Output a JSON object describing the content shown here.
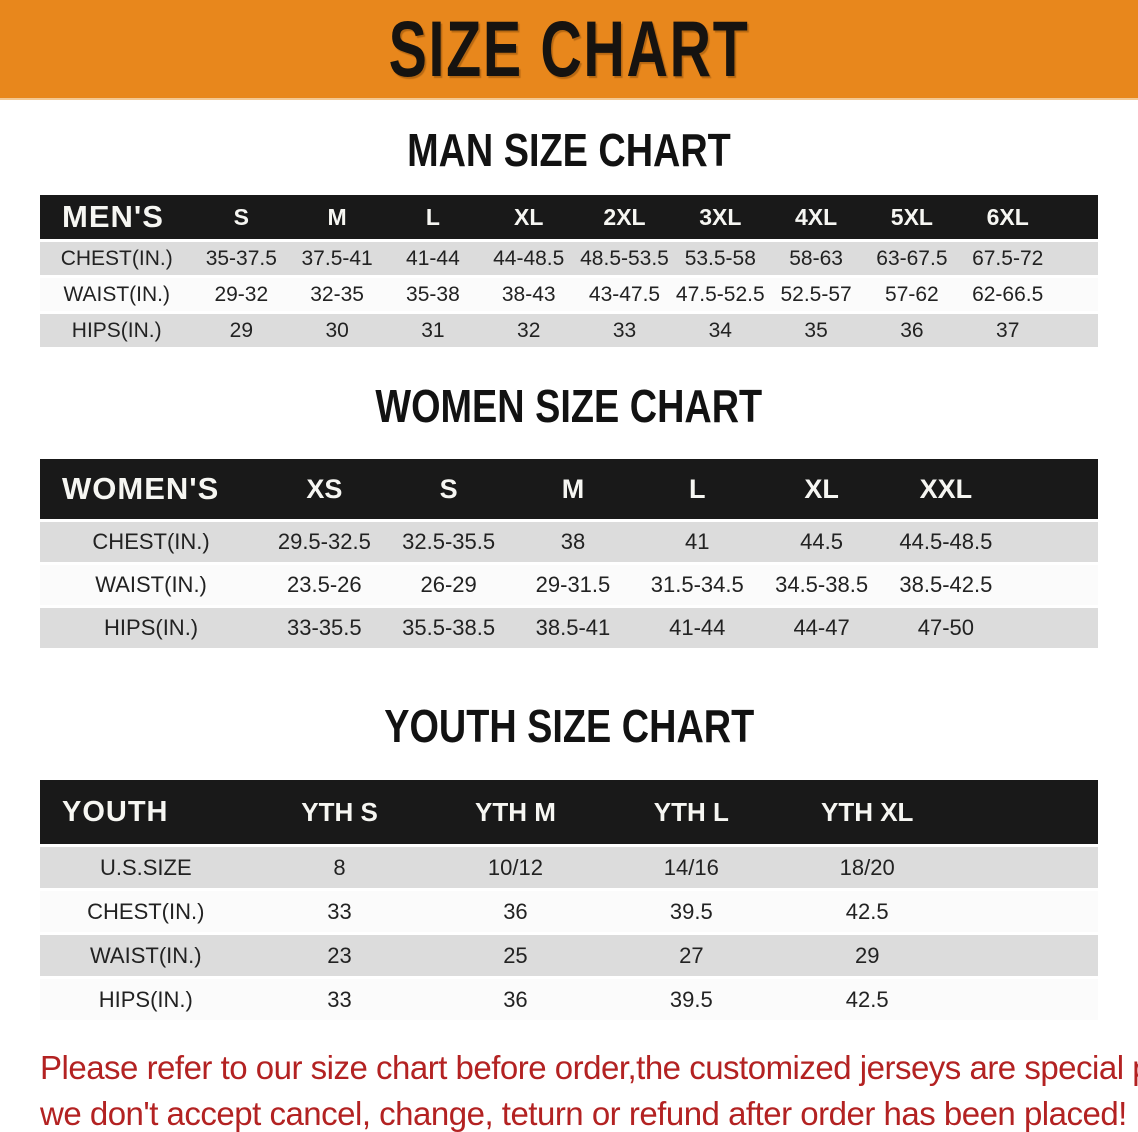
{
  "banner": {
    "label": "SIZE CHART",
    "bg_color": "#E8871C",
    "text_color": "#161310"
  },
  "sections": [
    {
      "id": "men",
      "title": "MAN SIZE CHART",
      "header_label": "MEN'S",
      "columns": [
        "S",
        "M",
        "L",
        "XL",
        "2XL",
        "3XL",
        "4XL",
        "5XL",
        "6XL"
      ],
      "rows": [
        {
          "label": "CHEST(IN.)",
          "values": [
            "35-37.5",
            "37.5-41",
            "41-44",
            "44-48.5",
            "48.5-53.5",
            "53.5-58",
            "58-63",
            "63-67.5",
            "67.5-72"
          ]
        },
        {
          "label": "WAIST(IN.)",
          "values": [
            "29-32",
            "32-35",
            "35-38",
            "38-43",
            "43-47.5",
            "47.5-52.5",
            "52.5-57",
            "57-62",
            "62-66.5"
          ]
        },
        {
          "label": "HIPS(IN.)",
          "values": [
            "29",
            "30",
            "31",
            "32",
            "33",
            "34",
            "35",
            "36",
            "37"
          ]
        }
      ]
    },
    {
      "id": "women",
      "title": "WOMEN SIZE CHART",
      "header_label": "WOMEN'S",
      "columns": [
        "XS",
        "S",
        "M",
        "L",
        "XL",
        "XXL"
      ],
      "rows": [
        {
          "label": "CHEST(IN.)",
          "values": [
            "29.5-32.5",
            "32.5-35.5",
            "38",
            "41",
            "44.5",
            "44.5-48.5"
          ]
        },
        {
          "label": "WAIST(IN.)",
          "values": [
            "23.5-26",
            "26-29",
            "29-31.5",
            "31.5-34.5",
            "34.5-38.5",
            "38.5-42.5"
          ]
        },
        {
          "label": "HIPS(IN.)",
          "values": [
            "33-35.5",
            "35.5-38.5",
            "38.5-41",
            "41-44",
            "44-47",
            "47-50"
          ]
        }
      ]
    },
    {
      "id": "youth",
      "title": "YOUTH SIZE CHART",
      "header_label": "YOUTH",
      "columns": [
        "YTH S",
        "YTH M",
        "YTH L",
        "YTH XL"
      ],
      "rows": [
        {
          "label": "U.S.SIZE",
          "values": [
            "8",
            "10/12",
            "14/16",
            "18/20"
          ]
        },
        {
          "label": "CHEST(IN.)",
          "values": [
            "33",
            "36",
            "39.5",
            "42.5"
          ]
        },
        {
          "label": "WAIST(IN.)",
          "values": [
            "23",
            "25",
            "27",
            "29"
          ]
        },
        {
          "label": "HIPS(IN.)",
          "values": [
            "33",
            "36",
            "39.5",
            "42.5"
          ]
        }
      ]
    }
  ],
  "disclaimer": {
    "line1": "Please refer to our size chart before order,the customized jerseys are special products,",
    "line2": "we don't accept cancel, change, teturn or refund after order has been placed!",
    "color": "#B32222"
  },
  "colors": {
    "table_header_bg": "#191919",
    "table_header_text": "#F6F6F2",
    "stripe_gray": "#DCDCDC",
    "stripe_white": "#FBFBFB",
    "cell_text": "#222222"
  }
}
